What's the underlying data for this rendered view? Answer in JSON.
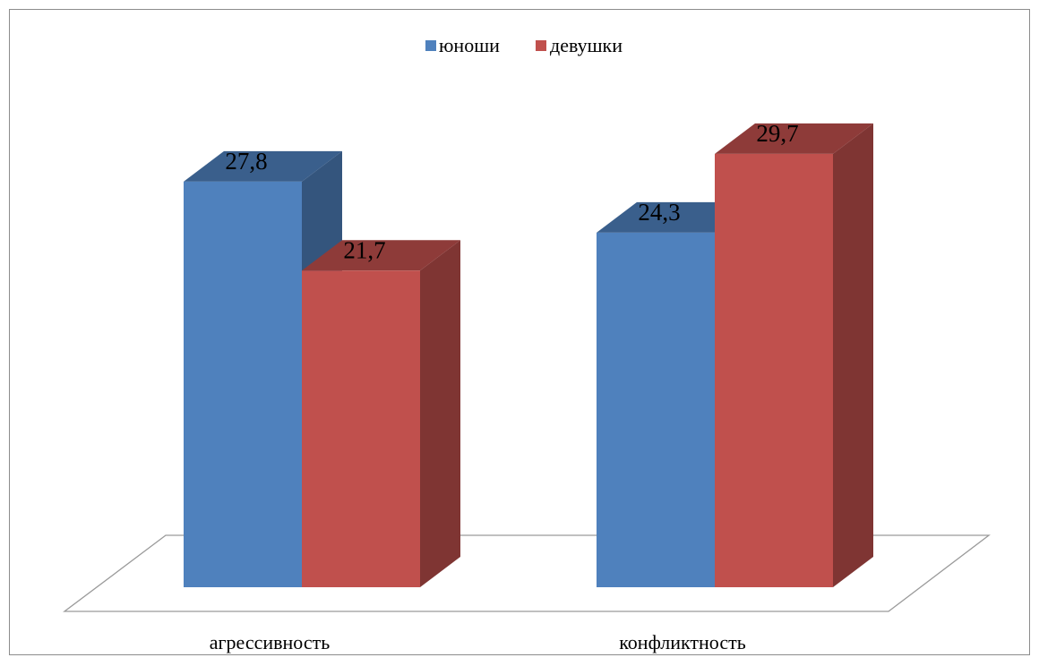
{
  "chart_data": {
    "type": "bar",
    "categories": [
      "агрессивность",
      "конфликтность"
    ],
    "series": [
      {
        "name": "юноши",
        "values": [
          27.8,
          24.3
        ],
        "value_labels": [
          "27,8",
          "24,3"
        ],
        "color": "#4f81bd"
      },
      {
        "name": "девушки",
        "values": [
          21.7,
          29.7
        ],
        "value_labels": [
          "21,7",
          "29,7"
        ],
        "color": "#c0504d"
      }
    ],
    "title": "",
    "xlabel": "",
    "ylabel": "",
    "ylim": [
      0,
      35
    ],
    "grid": false,
    "legend_position": "top",
    "style": "3d-clustered-column"
  }
}
